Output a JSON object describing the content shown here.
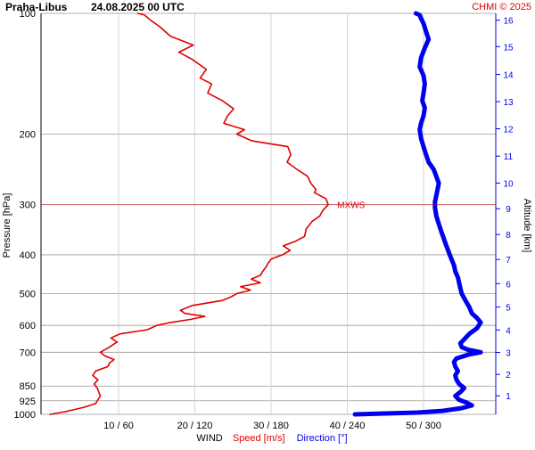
{
  "header": {
    "station": "Praha-Libus",
    "datetime": "24.08.2025 00 UTC",
    "credit": "CHMI © 2025"
  },
  "colors": {
    "speed": "#e00000",
    "direction": "#0000ee",
    "grid": "#999999",
    "text": "#000000"
  },
  "chart_data": {
    "type": "line",
    "y_scale": "log-pressure",
    "ylabel": "Pressure [hPa]",
    "ylim": [
      1000,
      100
    ],
    "pressure_ticks": [
      {
        "value": 100,
        "label": "100"
      },
      {
        "value": 200,
        "label": "200"
      },
      {
        "value": 300,
        "label": "300"
      },
      {
        "value": 400,
        "label": "400"
      },
      {
        "value": 500,
        "label": "500"
      },
      {
        "value": 600,
        "label": "600"
      },
      {
        "value": 700,
        "label": "700"
      },
      {
        "value": 850,
        "label": "850"
      },
      {
        "value": 925,
        "label": "925"
      },
      {
        "value": 1000,
        "label": "1000"
      }
    ],
    "x_ticks": [
      {
        "speed": 10,
        "direction": 60,
        "label": "10 / 60"
      },
      {
        "speed": 20,
        "direction": 120,
        "label": "20 / 120"
      },
      {
        "speed": 30,
        "direction": 180,
        "label": "30 / 180"
      },
      {
        "speed": 40,
        "direction": 240,
        "label": "40 / 240"
      },
      {
        "speed": 50,
        "direction": 300,
        "label": "50 / 300"
      }
    ],
    "xlabel_parts": {
      "wind": "WIND",
      "speed": "Speed [m/s]",
      "direction": "Direction [°]"
    },
    "speed_xlim": [
      0,
      60
    ],
    "direction_xlim": [
      0,
      360
    ],
    "altitude_axis": {
      "label": "Altitude [km]",
      "ticks": [
        {
          "km": 1,
          "p": 899,
          "label": "1"
        },
        {
          "km": 2,
          "p": 795,
          "label": "2"
        },
        {
          "km": 3,
          "p": 701,
          "label": "3"
        },
        {
          "km": 4,
          "p": 616,
          "label": "4"
        },
        {
          "km": 5,
          "p": 540,
          "label": "5"
        },
        {
          "km": 6,
          "p": 472,
          "label": "6"
        },
        {
          "km": 7,
          "p": 411,
          "label": "7"
        },
        {
          "km": 8,
          "p": 356,
          "label": "8"
        },
        {
          "km": 9,
          "p": 307,
          "label": "9"
        },
        {
          "km": 10,
          "p": 265,
          "label": "10"
        },
        {
          "km": 11,
          "p": 227,
          "label": "11"
        },
        {
          "km": 12,
          "p": 194,
          "label": "12"
        },
        {
          "km": 13,
          "p": 166,
          "label": "13"
        },
        {
          "km": 14,
          "p": 142,
          "label": "14"
        },
        {
          "km": 15,
          "p": 121,
          "label": "15"
        },
        {
          "km": 16,
          "p": 104,
          "label": "16"
        }
      ]
    },
    "annotations": [
      {
        "text": "MXWS",
        "pressure": 300,
        "speed": 37.5
      }
    ],
    "series": [
      {
        "name": "Speed [m/s]",
        "axis": "speed",
        "points": [
          [
            1000,
            1.0
          ],
          [
            985,
            3.0
          ],
          [
            960,
            5.5
          ],
          [
            940,
            7.0
          ],
          [
            925,
            7.2
          ],
          [
            900,
            7.6
          ],
          [
            880,
            7.4
          ],
          [
            860,
            7.2
          ],
          [
            840,
            6.8
          ],
          [
            820,
            7.3
          ],
          [
            800,
            6.6
          ],
          [
            780,
            7.0
          ],
          [
            760,
            8.6
          ],
          [
            745,
            8.8
          ],
          [
            730,
            9.4
          ],
          [
            715,
            8.2
          ],
          [
            700,
            7.6
          ],
          [
            680,
            8.8
          ],
          [
            660,
            9.8
          ],
          [
            645,
            9.0
          ],
          [
            630,
            10.2
          ],
          [
            615,
            13.8
          ],
          [
            600,
            15.0
          ],
          [
            590,
            16.8
          ],
          [
            580,
            19.4
          ],
          [
            570,
            21.3
          ],
          [
            560,
            18.7
          ],
          [
            550,
            18.1
          ],
          [
            535,
            19.7
          ],
          [
            520,
            23.6
          ],
          [
            510,
            24.7
          ],
          [
            500,
            25.5
          ],
          [
            490,
            27.3
          ],
          [
            480,
            26.0
          ],
          [
            470,
            28.6
          ],
          [
            460,
            27.4
          ],
          [
            450,
            28.6
          ],
          [
            440,
            28.9
          ],
          [
            430,
            29.3
          ],
          [
            420,
            29.6
          ],
          [
            410,
            30.0
          ],
          [
            400,
            31.5
          ],
          [
            390,
            32.5
          ],
          [
            380,
            31.6
          ],
          [
            370,
            33.2
          ],
          [
            360,
            34.4
          ],
          [
            345,
            34.6
          ],
          [
            330,
            35.4
          ],
          [
            320,
            36.4
          ],
          [
            310,
            36.8
          ],
          [
            300,
            37.5
          ],
          [
            290,
            37.2
          ],
          [
            280,
            35.7
          ],
          [
            275,
            35.9
          ],
          [
            265,
            35.2
          ],
          [
            255,
            34.8
          ],
          [
            245,
            33.4
          ],
          [
            235,
            32.1
          ],
          [
            225,
            32.6
          ],
          [
            215,
            32.2
          ],
          [
            208,
            27.5
          ],
          [
            200,
            25.5
          ],
          [
            195,
            26.5
          ],
          [
            188,
            23.8
          ],
          [
            180,
            24.3
          ],
          [
            173,
            25.1
          ],
          [
            165,
            23.6
          ],
          [
            158,
            21.7
          ],
          [
            150,
            22.2
          ],
          [
            145,
            20.7
          ],
          [
            138,
            21.5
          ],
          [
            130,
            19.6
          ],
          [
            125,
            17.9
          ],
          [
            120,
            19.8
          ],
          [
            114,
            16.8
          ],
          [
            108,
            15.4
          ],
          [
            104,
            14.2
          ],
          [
            101,
            13.4
          ],
          [
            100,
            12.5
          ]
        ]
      },
      {
        "name": "Direction [°]",
        "axis": "direction",
        "points": [
          [
            1000,
            246
          ],
          [
            995,
            270
          ],
          [
            990,
            295
          ],
          [
            980,
            315
          ],
          [
            965,
            330
          ],
          [
            950,
            338
          ],
          [
            935,
            334
          ],
          [
            920,
            328
          ],
          [
            900,
            325
          ],
          [
            880,
            329
          ],
          [
            860,
            332
          ],
          [
            840,
            328
          ],
          [
            820,
            326
          ],
          [
            800,
            325
          ],
          [
            780,
            327
          ],
          [
            760,
            325
          ],
          [
            740,
            324
          ],
          [
            725,
            326
          ],
          [
            710,
            335
          ],
          [
            700,
            345
          ],
          [
            690,
            335
          ],
          [
            680,
            330
          ],
          [
            665,
            329
          ],
          [
            650,
            332
          ],
          [
            630,
            336
          ],
          [
            610,
            342
          ],
          [
            590,
            345
          ],
          [
            575,
            342
          ],
          [
            560,
            338
          ],
          [
            540,
            336
          ],
          [
            520,
            333
          ],
          [
            500,
            330
          ],
          [
            485,
            329
          ],
          [
            470,
            328
          ],
          [
            455,
            327
          ],
          [
            440,
            325
          ],
          [
            425,
            324
          ],
          [
            410,
            322
          ],
          [
            395,
            320
          ],
          [
            380,
            318
          ],
          [
            365,
            316
          ],
          [
            350,
            314
          ],
          [
            335,
            312
          ],
          [
            320,
            310
          ],
          [
            305,
            309
          ],
          [
            295,
            309
          ],
          [
            285,
            310
          ],
          [
            275,
            311
          ],
          [
            265,
            312
          ],
          [
            255,
            310
          ],
          [
            245,
            308
          ],
          [
            235,
            304
          ],
          [
            225,
            302
          ],
          [
            215,
            300
          ],
          [
            205,
            298
          ],
          [
            195,
            297
          ],
          [
            188,
            298
          ],
          [
            180,
            300
          ],
          [
            172,
            301
          ],
          [
            165,
            299
          ],
          [
            158,
            300
          ],
          [
            150,
            301
          ],
          [
            143,
            300
          ],
          [
            136,
            297
          ],
          [
            129,
            298
          ],
          [
            122,
            301
          ],
          [
            116,
            304
          ],
          [
            111,
            302
          ],
          [
            106,
            300
          ],
          [
            103,
            298
          ],
          [
            101,
            297
          ],
          [
            100,
            294
          ]
        ]
      }
    ]
  }
}
